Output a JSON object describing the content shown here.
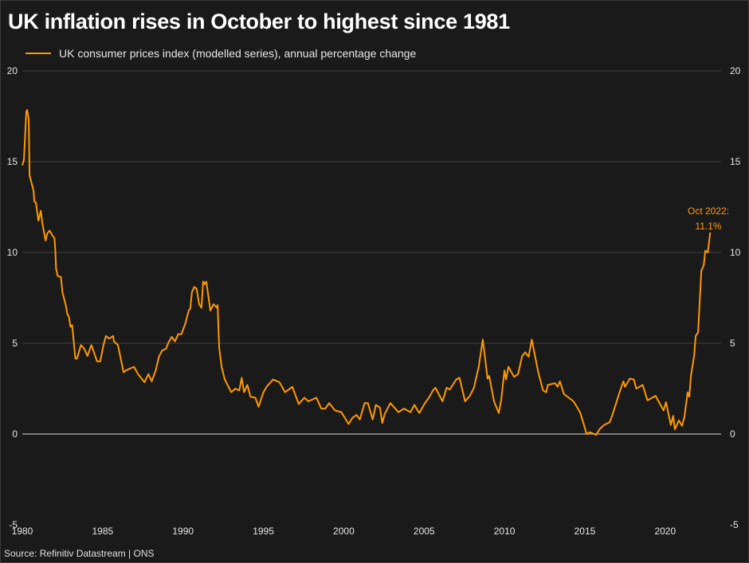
{
  "title": "UK inflation rises in October to highest since 1981",
  "source": "Source: Refinitiv Datastream | ONS",
  "chart_data": {
    "type": "line",
    "title": "UK inflation rises in October to highest since 1981",
    "xlabel": "",
    "ylabel": "",
    "xlim": [
      1980,
      2023.5
    ],
    "ylim": [
      -5,
      20
    ],
    "x_ticks": [
      "1980",
      "1985",
      "1990",
      "1995",
      "2000",
      "2005",
      "2010",
      "2015",
      "2020"
    ],
    "y_ticks": [
      "-5",
      "0",
      "5",
      "10",
      "15",
      "20"
    ],
    "grid": true,
    "legend": "top-left",
    "colors": {
      "line": "#ff9900",
      "background": "#1a1a1a",
      "grid": "#2e2e2e",
      "zero_line": "#9a9a9a",
      "annotation": "#ff9a1a"
    },
    "annotation": {
      "label": "Oct 2022:",
      "value_label": "11.1%",
      "x": 2022.8,
      "y": 11.1
    },
    "series": [
      {
        "name": "UK consumer prices index (modelled series), annual percentage change",
        "points": [
          [
            1980.0,
            14.8
          ],
          [
            1980.1,
            15.1
          ],
          [
            1980.25,
            17.75
          ],
          [
            1980.3,
            17.85
          ],
          [
            1980.4,
            17.3
          ],
          [
            1980.45,
            14.25
          ],
          [
            1980.7,
            13.4
          ],
          [
            1980.75,
            12.8
          ],
          [
            1980.85,
            12.75
          ],
          [
            1981.0,
            11.75
          ],
          [
            1981.15,
            12.3
          ],
          [
            1981.25,
            11.6
          ],
          [
            1981.45,
            10.65
          ],
          [
            1981.55,
            11.05
          ],
          [
            1981.7,
            11.2
          ],
          [
            1981.9,
            10.9
          ],
          [
            1982.0,
            10.8
          ],
          [
            1982.05,
            10.2
          ],
          [
            1982.1,
            9.1
          ],
          [
            1982.2,
            8.7
          ],
          [
            1982.4,
            8.65
          ],
          [
            1982.5,
            7.8
          ],
          [
            1982.7,
            7.1
          ],
          [
            1982.8,
            6.6
          ],
          [
            1982.9,
            6.45
          ],
          [
            1983.0,
            5.9
          ],
          [
            1983.1,
            6.0
          ],
          [
            1983.3,
            4.15
          ],
          [
            1983.4,
            4.15
          ],
          [
            1983.65,
            4.9
          ],
          [
            1983.85,
            4.7
          ],
          [
            1984.05,
            4.3
          ],
          [
            1984.3,
            4.9
          ],
          [
            1984.65,
            4.0
          ],
          [
            1984.85,
            4.0
          ],
          [
            1985.05,
            4.9
          ],
          [
            1985.2,
            5.4
          ],
          [
            1985.4,
            5.25
          ],
          [
            1985.65,
            5.4
          ],
          [
            1985.7,
            5.1
          ],
          [
            1985.95,
            4.9
          ],
          [
            1986.3,
            3.4
          ],
          [
            1986.45,
            3.5
          ],
          [
            1986.7,
            3.6
          ],
          [
            1986.95,
            3.7
          ],
          [
            1987.2,
            3.3
          ],
          [
            1987.6,
            2.85
          ],
          [
            1987.85,
            3.3
          ],
          [
            1988.05,
            2.9
          ],
          [
            1988.3,
            3.5
          ],
          [
            1988.5,
            4.25
          ],
          [
            1988.7,
            4.6
          ],
          [
            1988.95,
            4.7
          ],
          [
            1989.1,
            5.05
          ],
          [
            1989.3,
            5.35
          ],
          [
            1989.5,
            5.1
          ],
          [
            1989.7,
            5.5
          ],
          [
            1989.9,
            5.5
          ],
          [
            1990.15,
            6.1
          ],
          [
            1990.35,
            6.8
          ],
          [
            1990.45,
            6.9
          ],
          [
            1990.55,
            7.8
          ],
          [
            1990.7,
            8.1
          ],
          [
            1990.85,
            8.0
          ],
          [
            1991.0,
            7.15
          ],
          [
            1991.15,
            6.95
          ],
          [
            1991.25,
            8.4
          ],
          [
            1991.35,
            8.25
          ],
          [
            1991.45,
            8.4
          ],
          [
            1991.7,
            6.8
          ],
          [
            1991.9,
            7.15
          ],
          [
            1992.1,
            6.95
          ],
          [
            1992.15,
            7.1
          ],
          [
            1992.25,
            4.75
          ],
          [
            1992.4,
            3.7
          ],
          [
            1992.6,
            3.0
          ],
          [
            1993.0,
            2.3
          ],
          [
            1993.25,
            2.5
          ],
          [
            1993.5,
            2.4
          ],
          [
            1993.65,
            3.1
          ],
          [
            1993.8,
            2.3
          ],
          [
            1994.0,
            2.7
          ],
          [
            1994.2,
            2.05
          ],
          [
            1994.5,
            2.0
          ],
          [
            1994.7,
            1.5
          ],
          [
            1995.0,
            2.3
          ],
          [
            1995.2,
            2.6
          ],
          [
            1995.6,
            3.0
          ],
          [
            1996.0,
            2.85
          ],
          [
            1996.35,
            2.3
          ],
          [
            1996.8,
            2.6
          ],
          [
            1997.2,
            1.65
          ],
          [
            1997.55,
            2.0
          ],
          [
            1997.8,
            1.8
          ],
          [
            1998.3,
            2.0
          ],
          [
            1998.6,
            1.4
          ],
          [
            1998.85,
            1.4
          ],
          [
            1999.1,
            1.7
          ],
          [
            1999.45,
            1.3
          ],
          [
            1999.85,
            1.2
          ],
          [
            2000.3,
            0.55
          ],
          [
            2000.55,
            0.9
          ],
          [
            2000.8,
            1.05
          ],
          [
            2001.0,
            0.8
          ],
          [
            2001.3,
            1.7
          ],
          [
            2001.5,
            1.7
          ],
          [
            2001.6,
            1.4
          ],
          [
            2001.8,
            0.8
          ],
          [
            2002.0,
            1.6
          ],
          [
            2002.25,
            1.45
          ],
          [
            2002.4,
            0.6
          ],
          [
            2002.55,
            1.1
          ],
          [
            2002.9,
            1.7
          ],
          [
            2003.4,
            1.2
          ],
          [
            2003.75,
            1.4
          ],
          [
            2004.15,
            1.2
          ],
          [
            2004.4,
            1.6
          ],
          [
            2004.7,
            1.15
          ],
          [
            2005.05,
            1.7
          ],
          [
            2005.3,
            2.0
          ],
          [
            2005.55,
            2.4
          ],
          [
            2005.7,
            2.55
          ],
          [
            2006.15,
            1.8
          ],
          [
            2006.4,
            2.55
          ],
          [
            2006.6,
            2.45
          ],
          [
            2007.0,
            3.0
          ],
          [
            2007.2,
            3.1
          ],
          [
            2007.55,
            1.8
          ],
          [
            2007.85,
            2.1
          ],
          [
            2008.1,
            2.55
          ],
          [
            2008.4,
            3.7
          ],
          [
            2008.65,
            5.2
          ],
          [
            2008.95,
            3.05
          ],
          [
            2009.05,
            3.2
          ],
          [
            2009.35,
            1.8
          ],
          [
            2009.65,
            1.15
          ],
          [
            2009.8,
            1.9
          ],
          [
            2010.0,
            3.5
          ],
          [
            2010.1,
            3.0
          ],
          [
            2010.25,
            3.7
          ],
          [
            2010.6,
            3.15
          ],
          [
            2010.85,
            3.3
          ],
          [
            2011.1,
            4.3
          ],
          [
            2011.3,
            4.5
          ],
          [
            2011.5,
            4.25
          ],
          [
            2011.7,
            5.2
          ],
          [
            2012.1,
            3.4
          ],
          [
            2012.4,
            2.4
          ],
          [
            2012.6,
            2.3
          ],
          [
            2012.7,
            2.7
          ],
          [
            2013.15,
            2.8
          ],
          [
            2013.3,
            2.6
          ],
          [
            2013.45,
            2.9
          ],
          [
            2013.7,
            2.2
          ],
          [
            2014.3,
            1.8
          ],
          [
            2014.7,
            1.2
          ],
          [
            2014.95,
            0.5
          ],
          [
            2015.1,
            0.0
          ],
          [
            2015.3,
            0.1
          ],
          [
            2015.7,
            -0.05
          ],
          [
            2015.95,
            0.3
          ],
          [
            2016.2,
            0.5
          ],
          [
            2016.55,
            0.65
          ],
          [
            2016.7,
            1.0
          ],
          [
            2016.95,
            1.7
          ],
          [
            2017.2,
            2.4
          ],
          [
            2017.4,
            2.9
          ],
          [
            2017.5,
            2.6
          ],
          [
            2017.8,
            3.05
          ],
          [
            2018.05,
            3.0
          ],
          [
            2018.2,
            2.5
          ],
          [
            2018.6,
            2.7
          ],
          [
            2018.9,
            1.85
          ],
          [
            2019.4,
            2.1
          ],
          [
            2019.9,
            1.3
          ],
          [
            2020.05,
            1.75
          ],
          [
            2020.35,
            0.5
          ],
          [
            2020.5,
            1.0
          ],
          [
            2020.6,
            0.25
          ],
          [
            2020.85,
            0.75
          ],
          [
            2021.05,
            0.45
          ],
          [
            2021.2,
            0.95
          ],
          [
            2021.4,
            2.3
          ],
          [
            2021.5,
            2.05
          ],
          [
            2021.6,
            3.2
          ],
          [
            2021.8,
            4.3
          ],
          [
            2021.9,
            5.4
          ],
          [
            2022.05,
            5.6
          ],
          [
            2022.25,
            9.0
          ],
          [
            2022.4,
            9.3
          ],
          [
            2022.5,
            10.1
          ],
          [
            2022.65,
            10.0
          ],
          [
            2022.8,
            11.1
          ]
        ]
      }
    ]
  }
}
